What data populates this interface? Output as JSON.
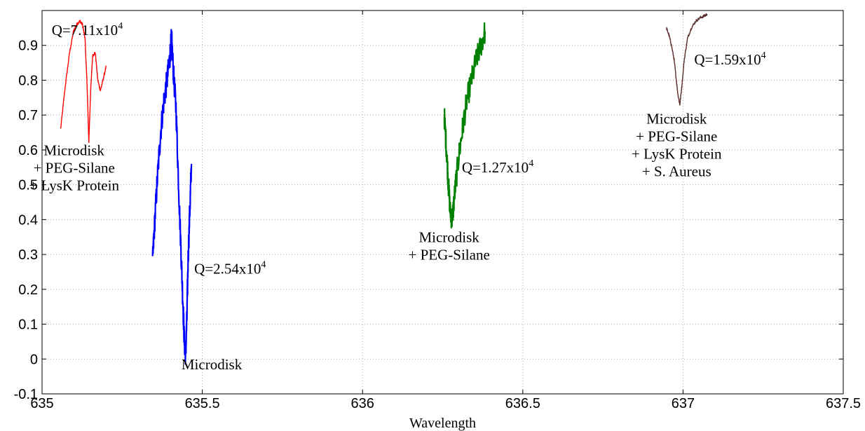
{
  "chart_data": {
    "type": "line",
    "title": "",
    "xlabel": "Wavelength",
    "ylabel": "",
    "xlim": [
      635,
      637.5
    ],
    "ylim": [
      -0.1,
      1.0
    ],
    "xticks": [
      635,
      635.5,
      636,
      636.5,
      637,
      637.5
    ],
    "xtick_labels": [
      "635",
      "635.5",
      "636",
      "636.5",
      "637",
      "637.5"
    ],
    "yticks": [
      -0.1,
      0,
      0.1,
      0.2,
      0.3,
      0.4,
      0.5,
      0.6,
      0.7,
      0.8,
      0.9
    ],
    "ytick_labels": [
      "-0.1",
      "0",
      "0.1",
      "0.2",
      "0.3",
      "0.4",
      "0.5",
      "0.6",
      "0.7",
      "0.8",
      "0.9"
    ],
    "grid": true,
    "legend": false,
    "series": [
      {
        "color": "#ff0000",
        "noise": 0.004,
        "x": [
          635.058,
          635.072,
          635.086,
          635.098,
          635.108,
          635.118,
          635.126,
          635.134,
          635.14,
          635.146,
          635.152,
          635.158,
          635.166,
          635.174,
          635.182,
          635.19,
          635.2
        ],
        "y": [
          0.66,
          0.78,
          0.88,
          0.94,
          0.96,
          0.97,
          0.96,
          0.92,
          0.8,
          0.62,
          0.78,
          0.87,
          0.88,
          0.8,
          0.77,
          0.8,
          0.84
        ]
      },
      {
        "color": "#0000ff",
        "noise": 0.035,
        "x": [
          635.345,
          635.352,
          635.36,
          635.37,
          635.38,
          635.39,
          635.398,
          635.404,
          635.41,
          635.418,
          635.426,
          635.434,
          635.44,
          635.444,
          635.448,
          635.452,
          635.456,
          635.462,
          635.466
        ],
        "y": [
          0.28,
          0.4,
          0.52,
          0.65,
          0.74,
          0.8,
          0.86,
          0.92,
          0.82,
          0.72,
          0.5,
          0.3,
          0.15,
          0.05,
          0.01,
          0.12,
          0.3,
          0.45,
          0.56
        ]
      },
      {
        "color": "#008000",
        "noise": 0.035,
        "x": [
          636.255,
          636.262,
          636.268,
          636.274,
          636.28,
          636.288,
          636.3,
          636.312,
          636.325,
          636.34,
          636.355,
          636.37,
          636.382
        ],
        "y": [
          0.7,
          0.6,
          0.5,
          0.42,
          0.4,
          0.48,
          0.58,
          0.66,
          0.74,
          0.8,
          0.86,
          0.9,
          0.94
        ]
      },
      {
        "color": "#5a2d2d",
        "noise": 0.004,
        "x": [
          636.948,
          636.956,
          636.964,
          636.972,
          636.978,
          636.984,
          636.99,
          636.996,
          637.004,
          637.014,
          637.026,
          637.04,
          637.055,
          637.068,
          637.075
        ],
        "y": [
          0.95,
          0.93,
          0.9,
          0.86,
          0.81,
          0.76,
          0.73,
          0.78,
          0.86,
          0.92,
          0.95,
          0.97,
          0.98,
          0.985,
          0.99
        ]
      }
    ],
    "annotations": [
      {
        "base": "Q=7.11x10",
        "exp": "4",
        "x": 635.03,
        "y": 0.93
      },
      {
        "base": "Q=2.54x10",
        "exp": "4",
        "x": 635.475,
        "y": 0.245
      },
      {
        "base": "Q=1.27x10",
        "exp": "4",
        "x": 636.31,
        "y": 0.535
      },
      {
        "base": "Q=1.59x10",
        "exp": "4",
        "x": 637.035,
        "y": 0.845
      }
    ],
    "labels": [
      {
        "lines": [
          "Microdisk",
          "+ PEG-Silane",
          "+ LysK Protein"
        ],
        "x": 635.1,
        "y": 0.585,
        "anchor": "middle"
      },
      {
        "lines": [
          "Microdisk"
        ],
        "x": 635.435,
        "y": -0.03,
        "anchor": "start"
      },
      {
        "lines": [
          "Microdisk",
          "+ PEG-Silane"
        ],
        "x": 636.27,
        "y": 0.335,
        "anchor": "middle"
      },
      {
        "lines": [
          "Microdisk",
          "+ PEG-Silane",
          "+ LysK Protein",
          "+ S. Aureus"
        ],
        "x": 636.98,
        "y": 0.675,
        "anchor": "middle"
      }
    ]
  }
}
